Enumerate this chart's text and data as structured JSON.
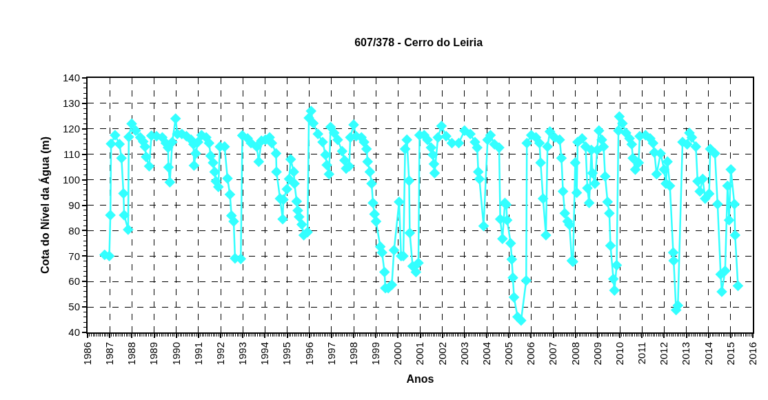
{
  "chart_data": {
    "type": "line",
    "title": "607/378 - Cerro do Leiria",
    "xlabel": "Anos",
    "ylabel": "Cota do Nível da Água (m)",
    "xlim": [
      1986,
      2016
    ],
    "xticks": [
      1986,
      1987,
      1988,
      1989,
      1990,
      1991,
      1992,
      1993,
      1994,
      1995,
      1996,
      1997,
      1998,
      1999,
      2000,
      2001,
      2002,
      2003,
      2004,
      2005,
      2006,
      2007,
      2008,
      2009,
      2010,
      2011,
      2012,
      2013,
      2014,
      2015,
      2016
    ],
    "ylim": [
      40,
      140
    ],
    "yticks": [
      40,
      50,
      60,
      70,
      80,
      90,
      100,
      110,
      120,
      130,
      140
    ],
    "grid": true,
    "marker": "diamond",
    "line_style": "solid",
    "series": [
      {
        "color": "#33ffff",
        "x": [
          1986.77,
          1986.98,
          1987.03,
          1987.06,
          1987.24,
          1987.44,
          1987.53,
          1987.62,
          1987.65,
          1987.83,
          1987.86,
          1987.99,
          1988.17,
          1988.38,
          1988.51,
          1988.59,
          1988.64,
          1988.78,
          1988.88,
          1989.11,
          1989.37,
          1989.53,
          1989.63,
          1989.65,
          1989.71,
          1989.82,
          1989.97,
          1990.05,
          1990.25,
          1990.46,
          1990.67,
          1990.78,
          1990.8,
          1990.88,
          1990.98,
          1991.14,
          1991.35,
          1991.48,
          1991.55,
          1991.66,
          1991.73,
          1991.79,
          1991.9,
          1991.97,
          1992.18,
          1992.31,
          1992.42,
          1992.49,
          1992.59,
          1992.65,
          1992.91,
          1992.98,
          1993.22,
          1993.37,
          1993.63,
          1993.72,
          1993.84,
          1994.02,
          1994.21,
          1994.31,
          1994.5,
          1994.52,
          1994.68,
          1994.8,
          1994.83,
          1994.99,
          1995.09,
          1995.16,
          1995.3,
          1995.33,
          1995.43,
          1995.48,
          1995.54,
          1995.66,
          1995.75,
          1995.92,
          1995.98,
          1996.08,
          1996.18,
          1996.39,
          1996.6,
          1996.73,
          1996.79,
          1996.89,
          1996.96,
          1997.12,
          1997.28,
          1997.48,
          1997.59,
          1997.66,
          1997.8,
          1997.85,
          1998.0,
          1998.11,
          1998.35,
          1998.47,
          1998.58,
          1998.63,
          1998.73,
          1998.81,
          1998.87,
          1998.94,
          1999.01,
          1999.2,
          1999.28,
          1999.39,
          1999.43,
          1999.56,
          1999.72,
          1999.82,
          2000.05,
          2000.14,
          2000.24,
          2000.32,
          2000.4,
          2000.5,
          2000.53,
          2000.66,
          2000.81,
          2000.92,
          2000.97,
          2001.18,
          2001.33,
          2001.49,
          2001.57,
          2001.62,
          2001.65,
          2001.8,
          2001.96,
          2002.17,
          2002.43,
          2002.74,
          2003.0,
          2003.26,
          2003.47,
          2003.57,
          2003.62,
          2003.67,
          2003.86,
          2004.04,
          2004.17,
          2004.35,
          2004.56,
          2004.61,
          2004.71,
          2004.82,
          2004.88,
          2004.92,
          2005.08,
          2005.13,
          2005.18,
          2005.23,
          2005.39,
          2005.55,
          2005.78,
          2005.81,
          2006.01,
          2006.22,
          2006.38,
          2006.43,
          2006.54,
          2006.67,
          2006.74,
          2006.85,
          2007.06,
          2007.29,
          2007.37,
          2007.44,
          2007.52,
          2007.65,
          2007.73,
          2007.84,
          2007.89,
          2007.99,
          2008.06,
          2008.1,
          2008.3,
          2008.46,
          2008.54,
          2008.62,
          2008.72,
          2008.77,
          2008.88,
          2008.98,
          2009.06,
          2009.19,
          2009.27,
          2009.34,
          2009.45,
          2009.53,
          2009.58,
          2009.71,
          2009.76,
          2009.86,
          2009.94,
          2009.98,
          2010.12,
          2010.28,
          2010.44,
          2010.54,
          2010.59,
          2010.7,
          2010.85,
          2010.9,
          2011.16,
          2011.37,
          2011.5,
          2011.56,
          2011.66,
          2011.84,
          2012.0,
          2012.08,
          2012.15,
          2012.26,
          2012.41,
          2012.43,
          2012.54,
          2012.62,
          2012.83,
          2013.04,
          2013.14,
          2013.25,
          2013.43,
          2013.51,
          2013.61,
          2013.74,
          2013.85,
          2014.03,
          2014.08,
          2014.29,
          2014.41,
          2014.55,
          2014.6,
          2014.75,
          2014.86,
          2014.93,
          2015.01,
          2015.17,
          2015.2,
          2015.33
        ],
        "values": [
          70.5,
          70.0,
          86.1,
          114.1,
          117.5,
          114,
          108.5,
          94.6,
          86.1,
          80.4,
          116.8,
          122.0,
          119.3,
          116.6,
          115,
          113,
          109,
          105.3,
          117.3,
          117.1,
          116.6,
          114.4,
          112.6,
          104.9,
          99,
          114.8,
          124.0,
          118,
          118,
          117.1,
          115.7,
          113.9,
          105.6,
          110.3,
          114.8,
          117.5,
          116.6,
          114.4,
          109.4,
          106.7,
          103.1,
          99.4,
          97.2,
          113,
          113,
          100.5,
          94.2,
          85.9,
          83.6,
          69.1,
          68.9,
          117.4,
          116.2,
          114.4,
          113,
          107.1,
          115.3,
          115.7,
          116.6,
          114.4,
          110.3,
          103.1,
          92.6,
          84.5,
          92.2,
          96.3,
          100.3,
          108.0,
          103.1,
          98.5,
          91.5,
          87.9,
          85.4,
          82.4,
          78.2,
          79.4,
          124.3,
          127.0,
          122.2,
          118,
          114.8,
          109.8,
          105.8,
          102.2,
          120.7,
          118.4,
          115.7,
          111.2,
          107.6,
          104.4,
          105.3,
          116.6,
          121.6,
          117.1,
          116.6,
          114.8,
          112.1,
          107.1,
          103.1,
          98.5,
          90.9,
          86.5,
          83.6,
          73.7,
          71.4,
          63.7,
          57.4,
          57.4,
          58.7,
          72.3,
          91.3,
          70.0,
          70.0,
          112.1,
          115.7,
          99.6,
          79.1,
          66.0,
          63.7,
          67.3,
          117.5,
          117.5,
          115.7,
          112.6,
          109.8,
          106.2,
          102.6,
          116.6,
          121.1,
          117.1,
          114.4,
          114.4,
          119.3,
          118,
          114.8,
          112.6,
          103.1,
          100.3,
          81.8,
          115.7,
          117.5,
          113.9,
          112.6,
          84.5,
          76.8,
          90.9,
          90.2,
          84.1,
          75.0,
          68.7,
          61.5,
          53.8,
          46.1,
          44.7,
          60.4,
          114.4,
          117.5,
          116.6,
          114.4,
          106.7,
          92.6,
          78.2,
          113,
          118.9,
          116.6,
          115.7,
          108.5,
          95.4,
          86.8,
          83.6,
          82.3,
          68.2,
          67.8,
          106.7,
          94.9,
          114.8,
          116.2,
          113,
          96.7,
          90.9,
          111.7,
          102.6,
          98.5,
          111.7,
          119.3,
          115.7,
          113,
          101.3,
          91.3,
          86.8,
          74.1,
          61.0,
          56.5,
          66.4,
          119.3,
          124.8,
          122.1,
          118.4,
          116.2,
          113.9,
          108.5,
          104,
          106.7,
          117.1,
          117.5,
          116.2,
          114.4,
          110.7,
          102.2,
          110.3,
          104,
          98.5,
          107.1,
          97.6,
          71.4,
          68.2,
          48.8,
          50.6,
          114.8,
          113.9,
          118.4,
          116.6,
          113,
          99.4,
          95.4,
          100.3,
          92.6,
          94.5,
          112.1,
          110.3,
          90.4,
          62.8,
          56.0,
          64.2,
          97.6,
          84.1,
          104,
          90.4,
          78.2,
          58.3
        ]
      }
    ]
  }
}
